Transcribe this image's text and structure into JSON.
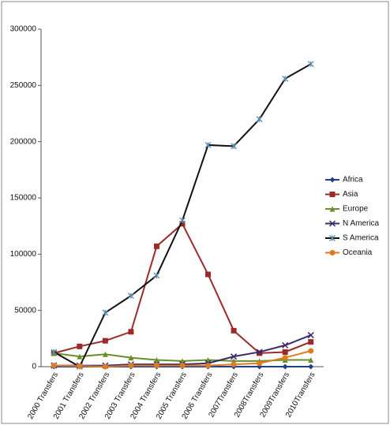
{
  "chart_data": {
    "type": "line",
    "categories": [
      "2000 Transfers",
      "2001 Transfers",
      "2002 Transfers",
      "2003 Transfers",
      "2004 Transfers",
      "2005 Transfers",
      "2006 Transfers",
      "2007Transfers",
      "2008Transfers",
      "2009Transfers",
      "2010Transfers"
    ],
    "series": [
      {
        "name": "Africa",
        "color": "#1f3f8f",
        "marker": "diamond",
        "values": [
          0,
          0,
          0,
          0,
          0,
          0,
          0,
          0,
          0,
          0,
          0
        ]
      },
      {
        "name": "Asia",
        "color": "#9c2a28",
        "marker": "square",
        "values": [
          12000,
          18000,
          23000,
          31000,
          107000,
          127000,
          82000,
          32000,
          12000,
          13000,
          22000
        ]
      },
      {
        "name": "Europe",
        "color": "#6a8f2a",
        "marker": "triangle",
        "values": [
          12000,
          9000,
          11000,
          8000,
          6000,
          5000,
          6000,
          5000,
          5000,
          6000,
          6000
        ]
      },
      {
        "name": "N America",
        "color": "#3b2a6b",
        "marker": "x",
        "values": [
          1000,
          1000,
          1000,
          2000,
          2000,
          2000,
          3000,
          9000,
          13000,
          19000,
          28000
        ]
      },
      {
        "name": "S America",
        "color": "#111111",
        "marker": "star",
        "values": [
          13000,
          0,
          48000,
          63000,
          81000,
          130000,
          197000,
          196000,
          220000,
          256000,
          269000
        ]
      },
      {
        "name": "Oceania",
        "color": "#e07b22",
        "marker": "circle",
        "values": [
          1000,
          500,
          0,
          1000,
          1000,
          1000,
          1000,
          2000,
          3000,
          8000,
          14000
        ]
      }
    ],
    "ylim": [
      0,
      300000
    ],
    "yticks": [
      0,
      50000,
      100000,
      150000,
      200000,
      250000,
      300000
    ],
    "grid": false,
    "legend": "right"
  }
}
